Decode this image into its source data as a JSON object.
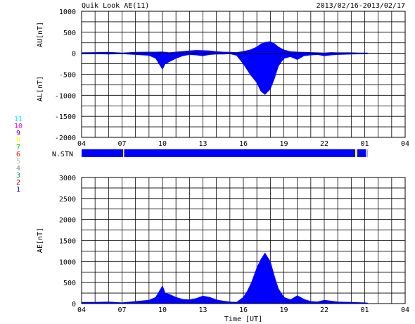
{
  "header": {
    "title": "Quik Look AE(11)",
    "date_range": "2013/02/16-2013/02/17"
  },
  "stations": {
    "numbers": [
      "11",
      "10",
      "9",
      "8",
      "7",
      "6",
      "5",
      "4",
      "3",
      "2",
      "1"
    ],
    "colors": [
      "#00ffff",
      "#ff00ff",
      "#800080",
      "#ffff00",
      "#00cc00",
      "#ff0000",
      "#bbbbbb",
      "#888888",
      "#008080",
      "#800000",
      "#0000ff"
    ],
    "nstn_label": "N.STN",
    "nstn_bar_color": "#0000ff",
    "nstn_gap_color": "#ffff00"
  },
  "colors": {
    "fill": "#0000ff",
    "grid": "#000000",
    "marker": "#ffff00"
  },
  "chart_data": [
    {
      "type": "area",
      "name": "upper-panel",
      "ylabel_top": "AU[nT]",
      "ylabel_bottom": "AL[nT]",
      "ylim": [
        -2000,
        1000
      ],
      "yticks": [
        1000,
        500,
        0,
        -500,
        -1000,
        -1500,
        -2000
      ],
      "xlim": [
        4,
        28
      ],
      "xtick_labels": [
        "04",
        "07",
        "10",
        "13",
        "16",
        "19",
        "22",
        "01",
        "04"
      ],
      "grid": true,
      "data_end_hour": 25.2,
      "series": [
        {
          "name": "AU",
          "x": [
            4,
            5,
            6,
            7,
            8,
            9,
            9.5,
            10,
            10.5,
            11,
            11.5,
            12,
            12.5,
            13,
            13.5,
            14,
            14.5,
            15,
            15.5,
            16,
            16.5,
            17,
            17.3,
            17.6,
            18,
            18.3,
            18.6,
            19,
            19.5,
            20,
            20.5,
            21,
            21.5,
            22,
            22.5,
            23,
            24,
            24.5,
            25,
            25.2
          ],
          "values": [
            15,
            20,
            25,
            10,
            25,
            30,
            30,
            35,
            15,
            30,
            45,
            60,
            70,
            65,
            60,
            40,
            30,
            25,
            20,
            45,
            80,
            150,
            220,
            260,
            280,
            230,
            150,
            80,
            40,
            30,
            25,
            20,
            15,
            10,
            20,
            15,
            15,
            10,
            10,
            8
          ]
        },
        {
          "name": "AL",
          "x": [
            4,
            5,
            6,
            7,
            8,
            9,
            9.5,
            10,
            10.2,
            10.5,
            11,
            11.5,
            12,
            12.5,
            13,
            13.5,
            14,
            14.5,
            15,
            15.5,
            16,
            16.5,
            17,
            17.3,
            17.6,
            18,
            18.3,
            18.6,
            19,
            19.5,
            20,
            20.5,
            21,
            21.5,
            22,
            22.5,
            23,
            24,
            24.5,
            25,
            25.2
          ],
          "values": [
            -15,
            -10,
            -20,
            -10,
            -30,
            -50,
            -120,
            -380,
            -250,
            -200,
            -120,
            -60,
            -30,
            -40,
            -60,
            -30,
            -20,
            -20,
            -10,
            -50,
            -250,
            -500,
            -700,
            -900,
            -980,
            -850,
            -600,
            -300,
            -120,
            -80,
            -150,
            -60,
            -40,
            -30,
            -60,
            -40,
            -30,
            -20,
            -15,
            -15,
            -10
          ]
        }
      ]
    },
    {
      "type": "area",
      "name": "lower-panel",
      "ylabel": "AE[nT]",
      "ylim": [
        0,
        3000
      ],
      "yticks": [
        3000,
        2500,
        2000,
        1500,
        1000,
        500,
        0
      ],
      "xlim": [
        4,
        28
      ],
      "xtick_labels": [
        "04",
        "07",
        "10",
        "13",
        "16",
        "19",
        "22",
        "01",
        "04"
      ],
      "xlabel": "Time [UT]",
      "grid": true,
      "series": [
        {
          "name": "AE",
          "x": [
            4,
            5,
            6,
            7,
            8,
            9,
            9.5,
            10,
            10.2,
            10.5,
            11,
            11.5,
            12,
            12.5,
            13,
            13.5,
            14,
            14.5,
            15,
            15.5,
            16,
            16.3,
            16.6,
            17,
            17.3,
            17.6,
            18,
            18.3,
            18.6,
            19,
            19.5,
            20,
            20.5,
            21,
            21.5,
            22,
            22.5,
            23,
            24,
            24.5,
            25,
            25.2
          ],
          "values": [
            30,
            30,
            40,
            20,
            50,
            80,
            150,
            420,
            250,
            220,
            150,
            100,
            90,
            120,
            180,
            150,
            90,
            60,
            40,
            30,
            150,
            300,
            500,
            850,
            1050,
            1200,
            1000,
            650,
            350,
            150,
            90,
            190,
            100,
            50,
            40,
            80,
            60,
            40,
            30,
            25,
            20,
            15
          ]
        }
      ]
    }
  ]
}
